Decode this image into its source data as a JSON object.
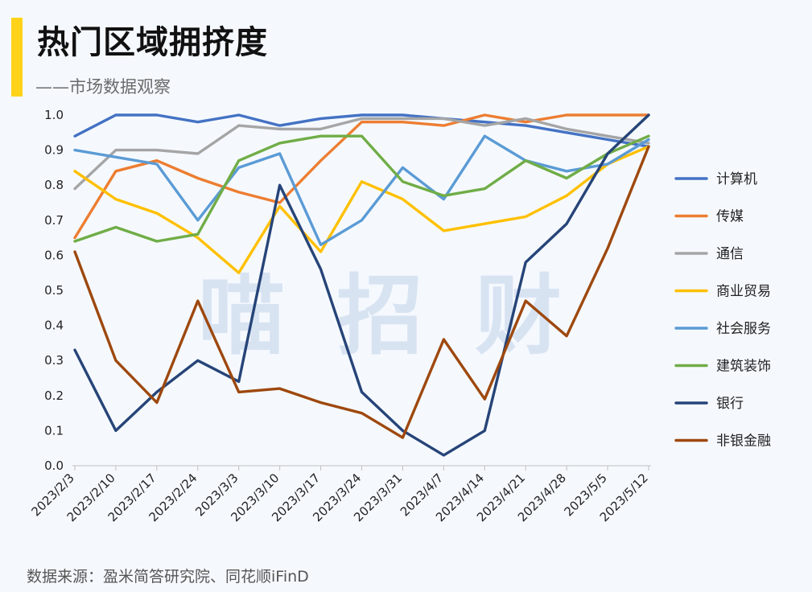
{
  "header": {
    "title": "热门区域拥挤度",
    "subtitle": "——市场数据观察"
  },
  "watermark": "喵招财",
  "source": "数据来源：盈米简答研究院、同花顺iFinD",
  "chart_data": {
    "type": "line",
    "title": "热门区域拥挤度",
    "xlabel": "",
    "ylabel": "",
    "ylim": [
      0,
      1.0
    ],
    "yticks": [
      "0.0",
      "0.1",
      "0.2",
      "0.3",
      "0.4",
      "0.5",
      "0.6",
      "0.7",
      "0.8",
      "0.9",
      "1.0"
    ],
    "legend_position": "right",
    "grid": false,
    "categories": [
      "2023/2/3",
      "2023/2/10",
      "2023/2/17",
      "2023/2/24",
      "2023/3/3",
      "2023/3/10",
      "2023/3/17",
      "2023/3/24",
      "2023/3/31",
      "2023/4/7",
      "2023/4/14",
      "2023/4/21",
      "2023/4/28",
      "2023/5/5",
      "2023/5/12"
    ],
    "series": [
      {
        "name": "计算机",
        "color": "#4472c4",
        "values": [
          0.94,
          1.0,
          1.0,
          0.98,
          1.0,
          0.97,
          0.99,
          1.0,
          1.0,
          0.99,
          0.98,
          0.97,
          0.95,
          0.93,
          0.91
        ]
      },
      {
        "name": "传媒",
        "color": "#ed7d31",
        "values": [
          0.65,
          0.84,
          0.87,
          0.82,
          0.78,
          0.75,
          0.87,
          0.98,
          0.98,
          0.97,
          1.0,
          0.98,
          1.0,
          1.0,
          1.0
        ]
      },
      {
        "name": "通信",
        "color": "#a5a5a5",
        "values": [
          0.79,
          0.9,
          0.9,
          0.89,
          0.97,
          0.96,
          0.96,
          0.99,
          0.99,
          0.99,
          0.97,
          0.99,
          0.96,
          0.94,
          0.92
        ]
      },
      {
        "name": "商业贸易",
        "color": "#ffc000",
        "values": [
          0.84,
          0.76,
          0.72,
          0.65,
          0.55,
          0.74,
          0.61,
          0.81,
          0.76,
          0.67,
          0.69,
          0.71,
          0.77,
          0.86,
          0.91
        ]
      },
      {
        "name": "社会服务",
        "color": "#5b9bd5",
        "values": [
          0.9,
          0.88,
          0.86,
          0.7,
          0.85,
          0.89,
          0.63,
          0.7,
          0.85,
          0.76,
          0.94,
          0.87,
          0.84,
          0.86,
          0.93
        ]
      },
      {
        "name": "建筑装饰",
        "color": "#70ad47",
        "values": [
          0.64,
          0.68,
          0.64,
          0.66,
          0.87,
          0.92,
          0.94,
          0.94,
          0.81,
          0.77,
          0.79,
          0.87,
          0.82,
          0.89,
          0.94
        ]
      },
      {
        "name": "银行",
        "color": "#264478",
        "values": [
          0.33,
          0.1,
          0.21,
          0.3,
          0.24,
          0.8,
          0.56,
          0.21,
          0.1,
          0.03,
          0.1,
          0.58,
          0.69,
          0.89,
          1.0
        ]
      },
      {
        "name": "非银金融",
        "color": "#9e480e",
        "values": [
          0.61,
          0.3,
          0.18,
          0.47,
          0.21,
          0.22,
          0.18,
          0.15,
          0.08,
          0.36,
          0.19,
          0.47,
          0.37,
          0.62,
          0.91
        ]
      }
    ]
  }
}
